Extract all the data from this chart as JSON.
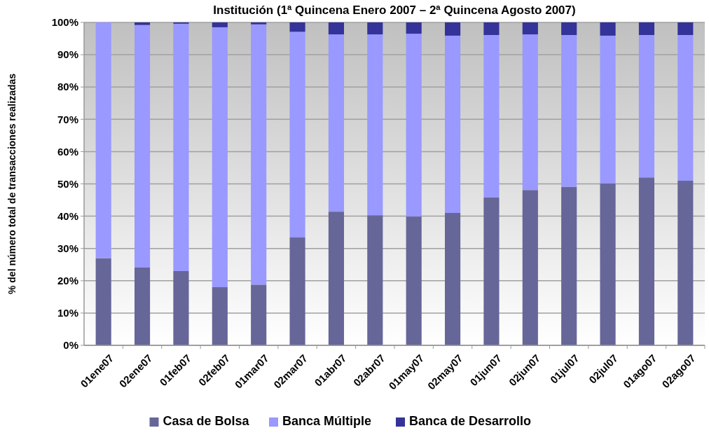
{
  "chart_data": {
    "type": "bar",
    "stacked": true,
    "title": "Institución (1ª Quincena Enero 2007 – 2ª Quincena Agosto 2007)",
    "ylabel": "% del número total de transacciones realizadas",
    "categories": [
      "01ene07",
      "02ene07",
      "01feb07",
      "02feb07",
      "01mar07",
      "02mar07",
      "01abr07",
      "02abr07",
      "01may07",
      "02may07",
      "01jun07",
      "02jun07",
      "01jul07",
      "02jul07",
      "01ago07",
      "02ago07"
    ],
    "series": [
      {
        "name": "Casa de Bolsa",
        "color": "#666699",
        "values": [
          27,
          24.2,
          23,
          18,
          18.8,
          33.4,
          41.4,
          40.3,
          39.9,
          41,
          45.8,
          48.1,
          49.1,
          50.1,
          52,
          51
        ]
      },
      {
        "name": "Banca Múltiple",
        "color": "#9999ff",
        "values": [
          73,
          75,
          76.6,
          80.5,
          80.6,
          63.7,
          54.9,
          56,
          56.6,
          54.9,
          50.3,
          48.2,
          47,
          45.8,
          44.1,
          45.1
        ]
      },
      {
        "name": "Banca de Desarrollo",
        "color": "#333399",
        "values": [
          0,
          0.8,
          0.4,
          1.5,
          0.6,
          2.9,
          3.7,
          3.7,
          3.5,
          4.1,
          3.9,
          3.7,
          3.9,
          4.1,
          3.9,
          3.9
        ]
      }
    ],
    "ylim": [
      0,
      100
    ],
    "yticks": [
      {
        "value": 0,
        "label": "0%"
      },
      {
        "value": 10,
        "label": "10%"
      },
      {
        "value": 20,
        "label": "20%"
      },
      {
        "value": 30,
        "label": "30%"
      },
      {
        "value": 40,
        "label": "40%"
      },
      {
        "value": 50,
        "label": "50%"
      },
      {
        "value": 60,
        "label": "60%"
      },
      {
        "value": 70,
        "label": "70%"
      },
      {
        "value": 80,
        "label": "80%"
      },
      {
        "value": 90,
        "label": "90%"
      },
      {
        "value": 100,
        "label": "100%"
      }
    ],
    "grid": "y",
    "legend": "bottom"
  }
}
